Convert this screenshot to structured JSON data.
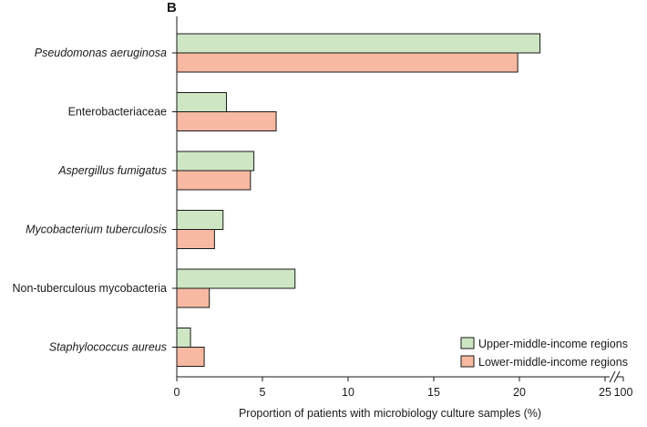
{
  "chart_data": {
    "type": "bar",
    "orientation": "horizontal",
    "panel_label": "B",
    "categories": [
      "Pseudomonas aeruginosa",
      "Enterobacteriaceae",
      "Aspergillus fumigatus",
      "Mycobacterium tuberculosis",
      "Non-tuberculous mycobacteria",
      "Staphylococcus aureus"
    ],
    "italic_categories": [
      true,
      false,
      true,
      true,
      false,
      true
    ],
    "series": [
      {
        "name": "Upper-middle-income regions",
        "color": "#cfe6c4",
        "values": [
          21.2,
          2.9,
          4.5,
          2.7,
          6.9,
          0.8
        ]
      },
      {
        "name": "Lower-middle-income regions",
        "color": "#f7b9a2",
        "values": [
          19.9,
          5.8,
          4.3,
          2.2,
          1.9,
          1.6
        ]
      }
    ],
    "xlabel": "Proportion of patients with microbiology culture samples (%)",
    "xlim": [
      0,
      25
    ],
    "xticks": [
      "0",
      "5",
      "10",
      "15",
      "20",
      "25"
    ],
    "axis_break": true,
    "break_tick": "100",
    "legend_position": "bottom-right",
    "grid": false
  }
}
